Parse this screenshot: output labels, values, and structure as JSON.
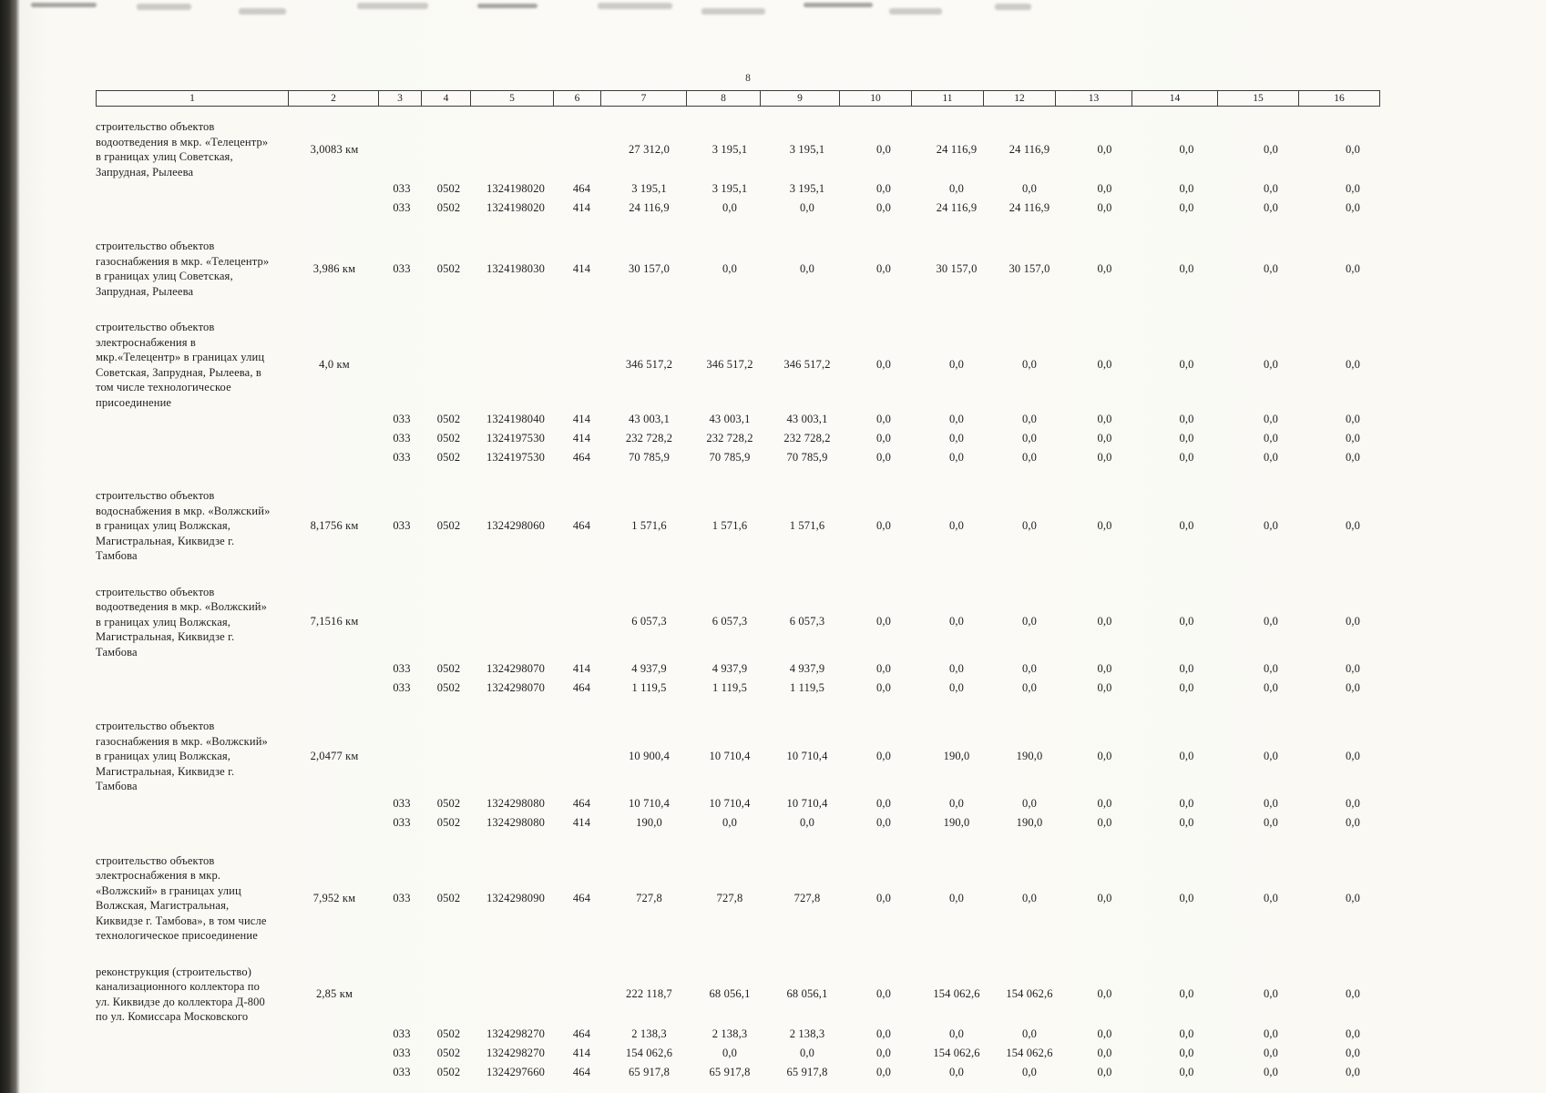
{
  "page": {
    "number": "8"
  },
  "table": {
    "header_cols": [
      "1",
      "2",
      "3",
      "4",
      "5",
      "6",
      "7",
      "8",
      "9",
      "10",
      "11",
      "12",
      "13",
      "14",
      "15",
      "16"
    ],
    "groups": [
      {
        "desc": "строительство объектов водоотведения в мкр. «Телецентр» в границах улиц Советская, Запрудная, Рылеева",
        "length": "3,0083 км",
        "rows": [
          {
            "c": [
              "",
              "",
              "",
              ""
            ],
            "v": [
              "27 312,0",
              "3 195,1",
              "3 195,1",
              "0,0",
              "24 116,9",
              "24 116,9",
              "0,0",
              "0,0",
              "0,0",
              "0,0"
            ]
          },
          {
            "c": [
              "033",
              "0502",
              "1324198020",
              "464"
            ],
            "v": [
              "3 195,1",
              "3 195,1",
              "3 195,1",
              "0,0",
              "0,0",
              "0,0",
              "0,0",
              "0,0",
              "0,0",
              "0,0"
            ]
          },
          {
            "c": [
              "033",
              "0502",
              "1324198020",
              "414"
            ],
            "v": [
              "24 116,9",
              "0,0",
              "0,0",
              "0,0",
              "24 116,9",
              "24 116,9",
              "0,0",
              "0,0",
              "0,0",
              "0,0"
            ]
          }
        ]
      },
      {
        "desc": "строительство объектов газоснабжения в мкр. «Телецентр» в границах улиц Советская, Запрудная, Рылеева",
        "length": "3,986 км",
        "rows": [
          {
            "c": [
              "033",
              "0502",
              "1324198030",
              "414"
            ],
            "v": [
              "30 157,0",
              "0,0",
              "0,0",
              "0,0",
              "30 157,0",
              "30 157,0",
              "0,0",
              "0,0",
              "0,0",
              "0,0"
            ]
          }
        ]
      },
      {
        "desc": "строительство объектов электроснабжения в мкр.«Телецентр» в границах улиц Советская, Запрудная, Рылеева, в том числе технологическое присоединение",
        "length": "4,0 км",
        "rows": [
          {
            "c": [
              "",
              "",
              "",
              ""
            ],
            "v": [
              "346 517,2",
              "346 517,2",
              "346 517,2",
              "0,0",
              "0,0",
              "0,0",
              "0,0",
              "0,0",
              "0,0",
              "0,0"
            ]
          },
          {
            "c": [
              "033",
              "0502",
              "1324198040",
              "414"
            ],
            "v": [
              "43 003,1",
              "43 003,1",
              "43 003,1",
              "0,0",
              "0,0",
              "0,0",
              "0,0",
              "0,0",
              "0,0",
              "0,0"
            ]
          },
          {
            "c": [
              "033",
              "0502",
              "1324197530",
              "414"
            ],
            "v": [
              "232 728,2",
              "232 728,2",
              "232 728,2",
              "0,0",
              "0,0",
              "0,0",
              "0,0",
              "0,0",
              "0,0",
              "0,0"
            ]
          },
          {
            "c": [
              "033",
              "0502",
              "1324197530",
              "464"
            ],
            "v": [
              "70 785,9",
              "70 785,9",
              "70 785,9",
              "0,0",
              "0,0",
              "0,0",
              "0,0",
              "0,0",
              "0,0",
              "0,0"
            ]
          }
        ]
      },
      {
        "desc": "строительство объектов водоснабжения в мкр. «Волжский» в границах улиц Волжская, Магистральная, Киквидзе г. Тамбова",
        "length": "8,1756 км",
        "rows": [
          {
            "c": [
              "033",
              "0502",
              "1324298060",
              "464"
            ],
            "v": [
              "1 571,6",
              "1 571,6",
              "1 571,6",
              "0,0",
              "0,0",
              "0,0",
              "0,0",
              "0,0",
              "0,0",
              "0,0"
            ]
          }
        ]
      },
      {
        "desc": "строительство объектов водоотведения в мкр. «Волжский» в границах улиц Волжская, Магистральная, Киквидзе г. Тамбова",
        "length": "7,1516 км",
        "rows": [
          {
            "c": [
              "",
              "",
              "",
              ""
            ],
            "v": [
              "6 057,3",
              "6 057,3",
              "6 057,3",
              "0,0",
              "0,0",
              "0,0",
              "0,0",
              "0,0",
              "0,0",
              "0,0"
            ]
          },
          {
            "c": [
              "033",
              "0502",
              "1324298070",
              "414"
            ],
            "v": [
              "4 937,9",
              "4 937,9",
              "4 937,9",
              "0,0",
              "0,0",
              "0,0",
              "0,0",
              "0,0",
              "0,0",
              "0,0"
            ]
          },
          {
            "c": [
              "033",
              "0502",
              "1324298070",
              "464"
            ],
            "v": [
              "1 119,5",
              "1 119,5",
              "1 119,5",
              "0,0",
              "0,0",
              "0,0",
              "0,0",
              "0,0",
              "0,0",
              "0,0"
            ]
          }
        ]
      },
      {
        "desc": "строительство объектов газоснабжения в мкр. «Волжский» в границах улиц Волжская, Магистральная, Киквидзе г. Тамбова",
        "length": "2,0477 км",
        "rows": [
          {
            "c": [
              "",
              "",
              "",
              ""
            ],
            "v": [
              "10 900,4",
              "10 710,4",
              "10 710,4",
              "0,0",
              "190,0",
              "190,0",
              "0,0",
              "0,0",
              "0,0",
              "0,0"
            ]
          },
          {
            "c": [
              "033",
              "0502",
              "1324298080",
              "464"
            ],
            "v": [
              "10 710,4",
              "10 710,4",
              "10 710,4",
              "0,0",
              "0,0",
              "0,0",
              "0,0",
              "0,0",
              "0,0",
              "0,0"
            ]
          },
          {
            "c": [
              "033",
              "0502",
              "1324298080",
              "414"
            ],
            "v": [
              "190,0",
              "0,0",
              "0,0",
              "0,0",
              "190,0",
              "190,0",
              "0,0",
              "0,0",
              "0,0",
              "0,0"
            ]
          }
        ]
      },
      {
        "desc": "строительство объектов электроснабжения в мкр. «Волжский» в границах улиц Волжская, Магистральная, Киквидзе г. Тамбова», в том числе технологическое присоединение",
        "length": "7,952 км",
        "rows": [
          {
            "c": [
              "033",
              "0502",
              "1324298090",
              "464"
            ],
            "v": [
              "727,8",
              "727,8",
              "727,8",
              "0,0",
              "0,0",
              "0,0",
              "0,0",
              "0,0",
              "0,0",
              "0,0"
            ]
          }
        ]
      },
      {
        "desc": "реконструкция (строительство) канализационного коллектора по ул. Киквидзе до коллектора Д-800 по ул. Комиссара Московского",
        "length": "2,85 км",
        "rows": [
          {
            "c": [
              "",
              "",
              "",
              ""
            ],
            "v": [
              "222 118,7",
              "68 056,1",
              "68 056,1",
              "0,0",
              "154 062,6",
              "154 062,6",
              "0,0",
              "0,0",
              "0,0",
              "0,0"
            ]
          },
          {
            "c": [
              "033",
              "0502",
              "1324298270",
              "464"
            ],
            "v": [
              "2 138,3",
              "2 138,3",
              "2 138,3",
              "0,0",
              "0,0",
              "0,0",
              "0,0",
              "0,0",
              "0,0",
              "0,0"
            ]
          },
          {
            "c": [
              "033",
              "0502",
              "1324298270",
              "414"
            ],
            "v": [
              "154 062,6",
              "0,0",
              "0,0",
              "0,0",
              "154 062,6",
              "154 062,6",
              "0,0",
              "0,0",
              "0,0",
              "0,0"
            ]
          },
          {
            "c": [
              "033",
              "0502",
              "1324297660",
              "464"
            ],
            "v": [
              "65 917,8",
              "65 917,8",
              "65 917,8",
              "0,0",
              "0,0",
              "0,0",
              "0,0",
              "0,0",
              "0,0",
              "0,0"
            ]
          }
        ]
      }
    ]
  }
}
